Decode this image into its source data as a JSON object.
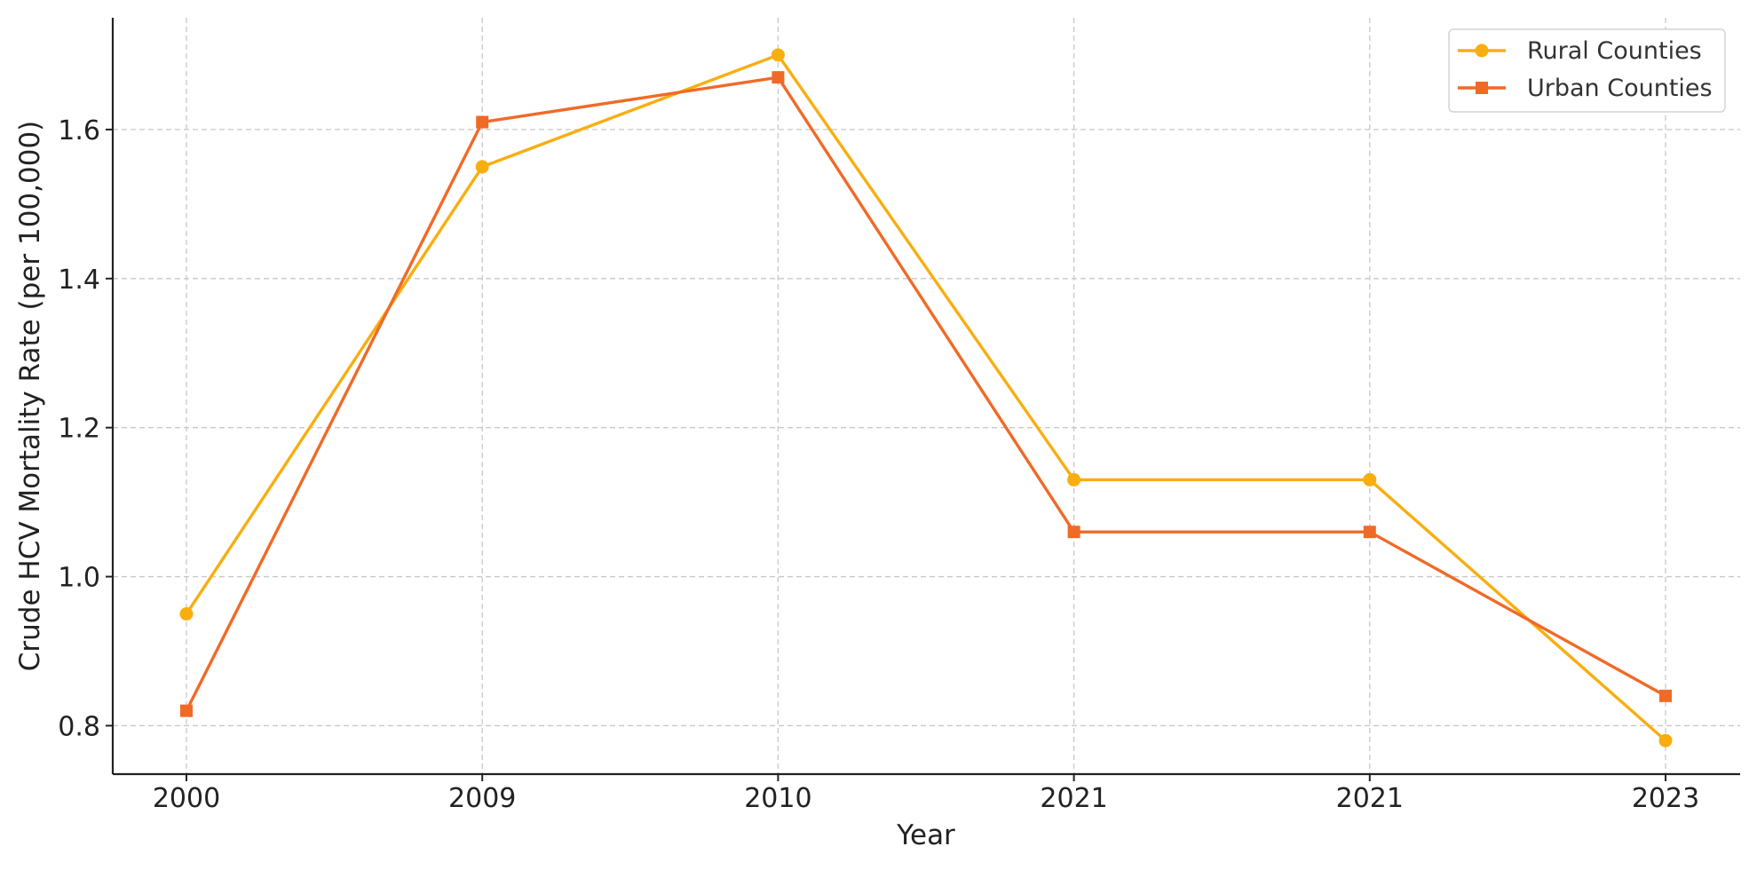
{
  "chart_data": {
    "type": "line",
    "title": "",
    "xlabel": "Year",
    "ylabel": "Crude HCV Mortality Rate (per 100,000)",
    "categories": [
      "2000",
      "2009",
      "2010",
      "2021",
      "2021",
      "2023"
    ],
    "ylim": [
      0.735,
      1.75
    ],
    "yticks": [
      0.8,
      1.0,
      1.2,
      1.4,
      1.6
    ],
    "ytick_labels": [
      "0.8",
      "1.0",
      "1.2",
      "1.4",
      "1.6"
    ],
    "grid": true,
    "legend_position": "top-right",
    "series": [
      {
        "name": "Rural Counties",
        "values": [
          0.95,
          1.55,
          1.7,
          1.13,
          1.13,
          0.78
        ],
        "color": "#F9AE0F",
        "marker": "circle"
      },
      {
        "name": "Urban Counties",
        "values": [
          0.82,
          1.61,
          1.67,
          1.06,
          1.06,
          0.84
        ],
        "color": "#F06A27",
        "marker": "square"
      }
    ]
  }
}
